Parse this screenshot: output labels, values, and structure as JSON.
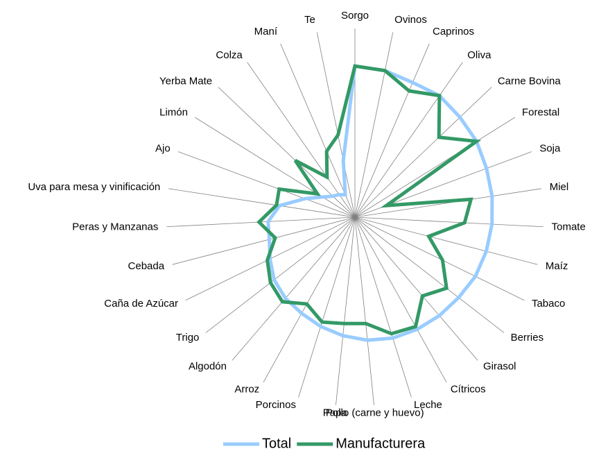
{
  "chart_data": {
    "type": "radar",
    "categories": [
      "Sorgo",
      "Ovinos",
      "Caprinos",
      "Oliva",
      "Carne Bovina",
      "Forestal",
      "Soja",
      "Miel",
      "Tomate",
      "Maíz",
      "Tabaco",
      "Berries",
      "Girasol",
      "Cítricos",
      "Leche",
      "Pollo (carne y huevo)",
      "Papa",
      "Porcinos",
      "Arroz",
      "Algodón",
      "Trigo",
      "Caña de Azúcar",
      "Cebada",
      "Peras y Manzanas",
      "Uva para mesa y vinificación",
      "Ajo",
      "Limón",
      "Yerba Mate",
      "Colza",
      "Maní",
      "Te"
    ],
    "series": [
      {
        "name": "Total",
        "color": "#99ccff",
        "values": [
          99,
          98,
          96,
          97,
          95,
          94,
          92,
          91,
          90,
          89,
          88,
          86,
          85,
          84,
          83,
          81,
          78,
          75,
          72,
          70,
          67,
          62,
          58,
          57,
          50,
          35,
          25,
          20,
          18,
          16,
          38
        ]
      },
      {
        "name": "Manufacturera",
        "color": "#339966",
        "values": [
          99,
          98,
          90,
          97,
          76,
          94,
          22,
          77,
          72,
          50,
          64,
          76,
          68,
          82,
          80,
          70,
          70,
          72,
          65,
          73,
          70,
          64,
          54,
          63,
          52,
          53,
          29,
          54,
          32,
          47,
          55
        ]
      }
    ],
    "ylim": [
      0,
      100
    ],
    "legend": "bottom"
  }
}
